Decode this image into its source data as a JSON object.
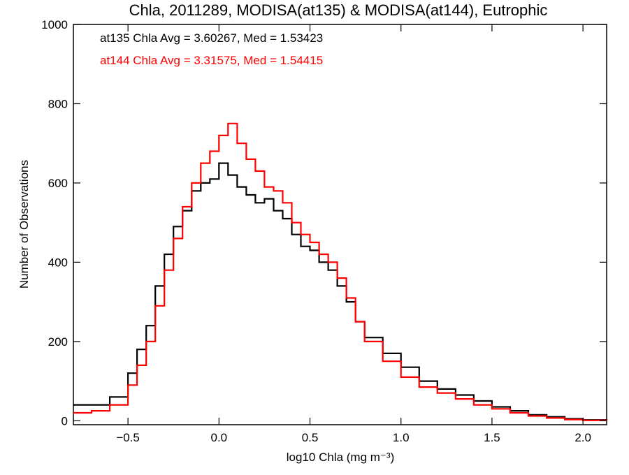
{
  "chart_data": {
    "type": "line",
    "title": "Chla, 2011289, MODISA(at135) & MODISA(at144), Eutrophic",
    "xlabel": "log10 Chla (mg m⁻³)",
    "ylabel": "Number of Observations",
    "xlim": [
      -0.8,
      2.13
    ],
    "ylim": [
      -10,
      1000
    ],
    "x_ticks": [
      -0.5,
      0.0,
      0.5,
      1.0,
      1.5,
      2.0
    ],
    "x_tick_labels": [
      "−0.5",
      "0.0",
      "0.5",
      "1.0",
      "1.5",
      "2.0"
    ],
    "y_ticks": [
      0,
      200,
      400,
      600,
      800,
      1000
    ],
    "y_tick_labels": [
      "0",
      "200",
      "400",
      "600",
      "800",
      "1000"
    ],
    "annotations": [
      {
        "text": "at135 Chla Avg = 3.60267, Med = 1.53423",
        "color": "#000000"
      },
      {
        "text": "at144 Chla Avg = 3.31575, Med = 1.54415",
        "color": "#ff0000"
      }
    ],
    "series": [
      {
        "name": "at135",
        "color": "#000000",
        "x": [
          -0.8,
          -0.7,
          -0.6,
          -0.5,
          -0.45,
          -0.4,
          -0.35,
          -0.3,
          -0.25,
          -0.2,
          -0.15,
          -0.1,
          -0.05,
          0.0,
          0.05,
          0.1,
          0.15,
          0.2,
          0.25,
          0.3,
          0.35,
          0.4,
          0.45,
          0.5,
          0.55,
          0.6,
          0.65,
          0.7,
          0.75,
          0.8,
          0.9,
          1.0,
          1.1,
          1.2,
          1.3,
          1.4,
          1.5,
          1.6,
          1.7,
          1.8,
          1.9,
          2.0,
          2.13
        ],
        "values": [
          40,
          40,
          60,
          120,
          180,
          240,
          340,
          420,
          490,
          530,
          580,
          600,
          610,
          650,
          620,
          590,
          570,
          550,
          560,
          530,
          510,
          470,
          440,
          430,
          400,
          380,
          340,
          300,
          250,
          210,
          170,
          135,
          100,
          80,
          65,
          50,
          35,
          25,
          15,
          10,
          5,
          2,
          0
        ]
      },
      {
        "name": "at144",
        "color": "#ff0000",
        "x": [
          -0.8,
          -0.7,
          -0.6,
          -0.5,
          -0.45,
          -0.4,
          -0.35,
          -0.3,
          -0.25,
          -0.2,
          -0.15,
          -0.1,
          -0.05,
          0.0,
          0.05,
          0.1,
          0.15,
          0.2,
          0.25,
          0.3,
          0.35,
          0.4,
          0.45,
          0.5,
          0.55,
          0.6,
          0.65,
          0.7,
          0.75,
          0.8,
          0.9,
          1.0,
          1.1,
          1.2,
          1.3,
          1.4,
          1.5,
          1.6,
          1.7,
          1.8,
          1.9,
          2.0,
          2.13
        ],
        "values": [
          20,
          25,
          40,
          90,
          140,
          200,
          290,
          380,
          460,
          540,
          600,
          650,
          680,
          720,
          750,
          700,
          660,
          630,
          590,
          580,
          550,
          500,
          470,
          450,
          420,
          400,
          360,
          310,
          250,
          200,
          150,
          110,
          85,
          70,
          55,
          40,
          30,
          20,
          12,
          7,
          3,
          1,
          0
        ]
      }
    ],
    "grid": false,
    "legend": "top-left annotations"
  }
}
